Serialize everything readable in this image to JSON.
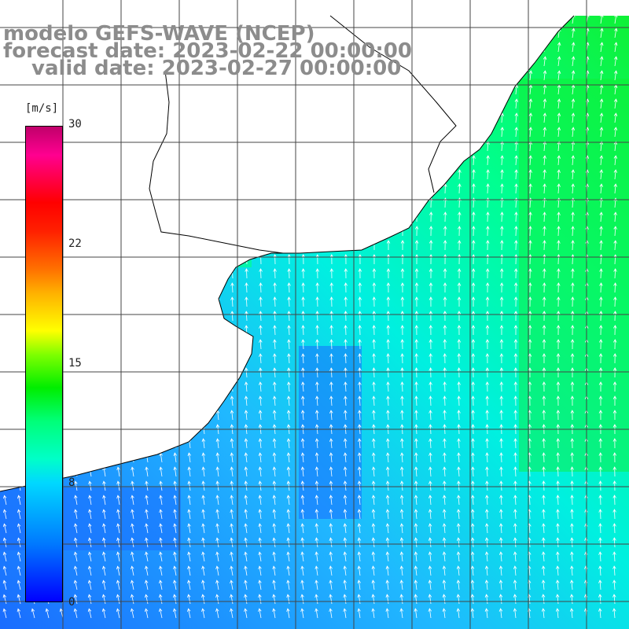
{
  "header": {
    "model_line": "modelo GEFS-WAVE (NCEP)",
    "forecast_line": "forecast date: 2023-02-22 00:00:00",
    "valid_line": "valid date: 2023-02-27 00:00:00"
  },
  "colorbar": {
    "unit": "[m/s]",
    "ticks": [
      {
        "label": "30",
        "value": 30
      },
      {
        "label": "22",
        "value": 22
      },
      {
        "label": "15",
        "value": 15
      },
      {
        "label": "8",
        "value": 8
      },
      {
        "label": "0",
        "value": 0
      }
    ],
    "colors": [
      "#0000ff",
      "#0078ff",
      "#00d8ff",
      "#00ffc8",
      "#00ff78",
      "#00ee00",
      "#7fff00",
      "#ffff00",
      "#ff7000",
      "#ff0000",
      "#c0006a"
    ]
  },
  "map": {
    "field": "wind speed and direction",
    "land_color": "#ffffff",
    "coastline_color": "#000000",
    "grid_color": "#444444",
    "arrow_color": "#ffffff"
  }
}
